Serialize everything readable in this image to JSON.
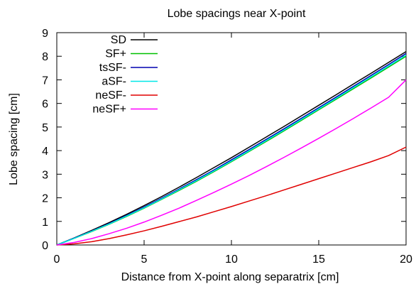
{
  "chart_data": {
    "type": "line",
    "title": "Lobe spacings near X-point",
    "xlabel": "Distance from X-point along separatrix [cm]",
    "ylabel": "Lobe spacing [cm]",
    "xlim": [
      0,
      20
    ],
    "ylim": [
      0,
      9
    ],
    "x_ticks": [
      "0",
      "5",
      "10",
      "15",
      "20"
    ],
    "y_ticks": [
      "0",
      "1",
      "2",
      "3",
      "4",
      "5",
      "6",
      "7",
      "8",
      "9"
    ],
    "grid": false,
    "legend_position": "top-left",
    "x": [
      0,
      1,
      2,
      3,
      4,
      5,
      6,
      7,
      8,
      9,
      10,
      11,
      12,
      13,
      14,
      15,
      16,
      17,
      18,
      19,
      20
    ],
    "series": [
      {
        "name": "SD",
        "color": "#000000",
        "values": [
          0.0,
          0.3,
          0.62,
          0.95,
          1.3,
          1.67,
          2.05,
          2.45,
          2.86,
          3.28,
          3.7,
          4.14,
          4.58,
          5.02,
          5.47,
          5.92,
          6.37,
          6.83,
          7.28,
          7.74,
          8.2
        ]
      },
      {
        "name": "SF+",
        "color": "#00c000",
        "values": [
          0.0,
          0.28,
          0.57,
          0.88,
          1.21,
          1.56,
          1.93,
          2.31,
          2.7,
          3.11,
          3.53,
          3.96,
          4.39,
          4.83,
          5.28,
          5.73,
          6.18,
          6.63,
          7.08,
          7.54,
          8.0
        ]
      },
      {
        "name": "tsSF-",
        "color": "#0000b0",
        "values": [
          0.0,
          0.29,
          0.59,
          0.91,
          1.25,
          1.61,
          1.98,
          2.37,
          2.77,
          3.18,
          3.61,
          4.04,
          4.48,
          4.92,
          5.37,
          5.82,
          6.27,
          6.73,
          7.19,
          7.65,
          8.12
        ]
      },
      {
        "name": "aSF-",
        "color": "#00e8e8",
        "values": [
          0.0,
          0.28,
          0.58,
          0.89,
          1.23,
          1.58,
          1.95,
          2.34,
          2.73,
          3.14,
          3.56,
          3.99,
          4.43,
          4.87,
          5.32,
          5.77,
          6.22,
          6.68,
          7.13,
          7.59,
          8.05
        ]
      },
      {
        "name": "neSF-",
        "color": "#e00000",
        "values": [
          0.0,
          0.05,
          0.14,
          0.27,
          0.43,
          0.6,
          0.79,
          0.99,
          1.19,
          1.41,
          1.63,
          1.86,
          2.09,
          2.33,
          2.57,
          2.81,
          3.05,
          3.29,
          3.53,
          3.79,
          4.15
        ]
      },
      {
        "name": "neSF+",
        "color": "#ff00ff",
        "values": [
          0.0,
          0.11,
          0.27,
          0.48,
          0.71,
          0.97,
          1.26,
          1.56,
          1.89,
          2.23,
          2.58,
          2.94,
          3.32,
          3.71,
          4.11,
          4.52,
          4.94,
          5.37,
          5.81,
          6.26,
          7.0
        ]
      }
    ]
  }
}
